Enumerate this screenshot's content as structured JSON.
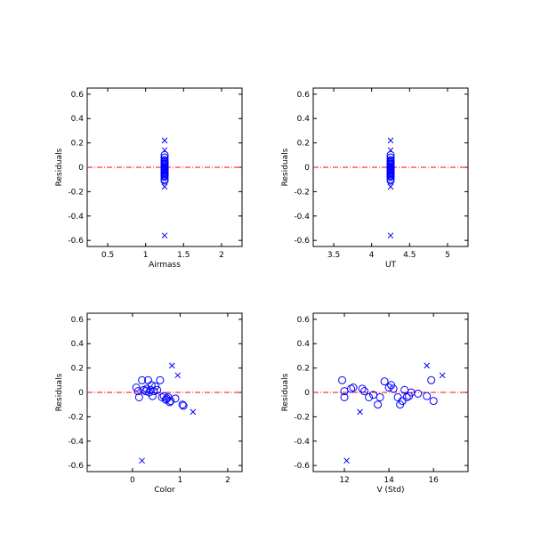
{
  "colors": {
    "marker": "#0000ff",
    "zero_line": "#ff0000",
    "axis": "#000000"
  },
  "chart_data": [
    {
      "type": "scatter",
      "title": "",
      "xlabel": "Airmass",
      "ylabel": "Residuals",
      "xlim": [
        0.23,
        2.27
      ],
      "ylim": [
        -0.65,
        0.65
      ],
      "xticks": [
        0.5,
        1.0,
        1.5,
        2.0
      ],
      "yticks": [
        -0.6,
        -0.4,
        -0.2,
        0.0,
        0.2,
        0.4,
        0.6
      ],
      "zero_line": 0.0,
      "series": [
        {
          "marker": "circle",
          "x": [
            1.25,
            1.25,
            1.25,
            1.25,
            1.25,
            1.25,
            1.25,
            1.25,
            1.25,
            1.25,
            1.25,
            1.25,
            1.25,
            1.25,
            1.25,
            1.25,
            1.25,
            1.25,
            1.25,
            1.25,
            1.25,
            1.25,
            1.25,
            1.25,
            1.25,
            1.25
          ],
          "y": [
            0.1,
            0.08,
            0.06,
            0.05,
            0.04,
            0.03,
            0.03,
            0.02,
            0.02,
            0.01,
            0.0,
            0.0,
            -0.01,
            -0.02,
            -0.02,
            -0.03,
            -0.03,
            -0.04,
            -0.04,
            -0.05,
            -0.05,
            -0.06,
            -0.07,
            -0.08,
            -0.1,
            -0.11
          ]
        },
        {
          "marker": "x",
          "x": [
            1.25,
            1.25,
            1.25,
            1.25
          ],
          "y": [
            0.22,
            0.14,
            -0.16,
            -0.56
          ]
        }
      ]
    },
    {
      "type": "scatter",
      "title": "",
      "xlabel": "UT",
      "ylabel": "Residuals",
      "xlim": [
        3.23,
        5.27
      ],
      "ylim": [
        -0.65,
        0.65
      ],
      "xticks": [
        3.5,
        4.0,
        4.5,
        5.0
      ],
      "yticks": [
        -0.6,
        -0.4,
        -0.2,
        0.0,
        0.2,
        0.4,
        0.6
      ],
      "zero_line": 0.0,
      "series": [
        {
          "marker": "circle",
          "x": [
            4.25,
            4.25,
            4.25,
            4.25,
            4.25,
            4.25,
            4.25,
            4.25,
            4.25,
            4.25,
            4.25,
            4.25,
            4.25,
            4.25,
            4.25,
            4.25,
            4.25,
            4.25,
            4.25,
            4.25,
            4.25,
            4.25,
            4.25,
            4.25,
            4.25,
            4.25
          ],
          "y": [
            0.1,
            0.08,
            0.06,
            0.05,
            0.04,
            0.03,
            0.03,
            0.02,
            0.02,
            0.01,
            0.0,
            0.0,
            -0.01,
            -0.02,
            -0.02,
            -0.03,
            -0.03,
            -0.04,
            -0.04,
            -0.05,
            -0.05,
            -0.06,
            -0.07,
            -0.08,
            -0.1,
            -0.11
          ]
        },
        {
          "marker": "x",
          "x": [
            4.25,
            4.25,
            4.25,
            4.25
          ],
          "y": [
            0.22,
            0.14,
            -0.16,
            -0.56
          ]
        }
      ]
    },
    {
      "type": "scatter",
      "title": "",
      "xlabel": "Color",
      "ylabel": "Residuals",
      "xlim": [
        -0.95,
        2.3
      ],
      "ylim": [
        -0.65,
        0.65
      ],
      "xticks": [
        0,
        1,
        2
      ],
      "yticks": [
        -0.6,
        -0.4,
        -0.2,
        0.0,
        0.2,
        0.4,
        0.6
      ],
      "zero_line": 0.0,
      "series": [
        {
          "marker": "circle",
          "x": [
            0.08,
            0.14,
            0.2,
            0.24,
            0.28,
            0.3,
            0.33,
            0.35,
            0.38,
            0.4,
            0.42,
            0.45,
            0.48,
            0.52,
            0.58,
            0.62,
            0.66,
            0.7,
            0.72,
            0.75,
            0.78,
            0.8,
            0.9,
            1.05,
            1.07,
            0.12
          ],
          "y": [
            0.04,
            -0.04,
            0.1,
            0.02,
            0.01,
            0.03,
            0.1,
            0.0,
            0.02,
            0.06,
            -0.03,
            0.01,
            0.05,
            0.02,
            0.1,
            -0.04,
            -0.03,
            -0.06,
            -0.05,
            -0.04,
            -0.08,
            -0.07,
            -0.05,
            -0.1,
            -0.11,
            0.01
          ]
        },
        {
          "marker": "x",
          "x": [
            0.2,
            0.83,
            0.95,
            1.27
          ],
          "y": [
            -0.56,
            0.22,
            0.14,
            -0.16
          ]
        }
      ]
    },
    {
      "type": "scatter",
      "title": "",
      "xlabel": "V (Std)",
      "ylabel": "Residuals",
      "xlim": [
        10.6,
        17.55
      ],
      "ylim": [
        -0.65,
        0.65
      ],
      "xticks": [
        12,
        14,
        16
      ],
      "yticks": [
        -0.6,
        -0.4,
        -0.2,
        0.0,
        0.2,
        0.4,
        0.6
      ],
      "zero_line": 0.0,
      "series": [
        {
          "marker": "circle",
          "x": [
            11.9,
            12.0,
            12.0,
            12.3,
            12.4,
            12.8,
            12.9,
            13.1,
            13.3,
            13.5,
            13.6,
            13.8,
            14.0,
            14.1,
            14.2,
            14.4,
            14.5,
            14.6,
            14.7,
            14.8,
            14.9,
            15.0,
            15.3,
            15.7,
            15.9,
            16.0
          ],
          "y": [
            0.1,
            0.01,
            -0.04,
            0.03,
            0.04,
            0.03,
            0.01,
            -0.04,
            -0.02,
            -0.1,
            -0.04,
            0.09,
            0.04,
            0.06,
            0.03,
            -0.04,
            -0.1,
            -0.07,
            0.02,
            -0.04,
            -0.03,
            0.0,
            -0.01,
            -0.03,
            0.1,
            -0.07
          ]
        },
        {
          "marker": "x",
          "x": [
            12.1,
            12.7,
            15.7,
            16.4
          ],
          "y": [
            -0.56,
            -0.16,
            0.22,
            0.14
          ]
        }
      ]
    }
  ]
}
